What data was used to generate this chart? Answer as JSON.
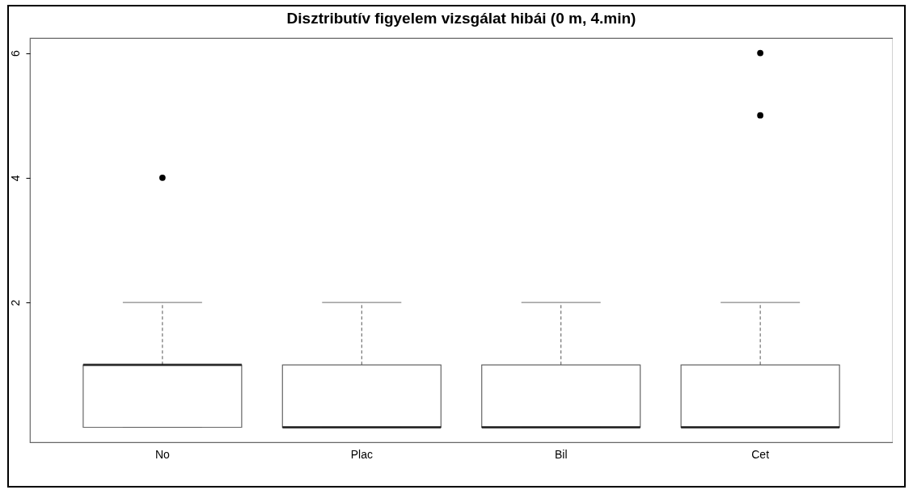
{
  "chart_data": {
    "type": "box",
    "title": "Disztributív figyelem vizsgálat hibái (0 m, 4.min)",
    "categories": [
      "No",
      "Plac",
      "Bil",
      "Cet"
    ],
    "boxes": [
      {
        "low": 0,
        "q1": 0,
        "median": 1,
        "q3": 1,
        "high": 2,
        "outliers": [
          4
        ]
      },
      {
        "low": 0,
        "q1": 0,
        "median": 0,
        "q3": 1,
        "high": 2
      },
      {
        "low": 0,
        "q1": 0,
        "median": 0,
        "q3": 1,
        "high": 2
      },
      {
        "low": 0,
        "q1": 0,
        "median": 0,
        "q3": 1,
        "high": 2,
        "outliers": [
          6,
          5
        ]
      }
    ],
    "ylim": [
      -0.24,
      6.24
    ],
    "yticks": [
      2,
      4,
      6
    ]
  }
}
